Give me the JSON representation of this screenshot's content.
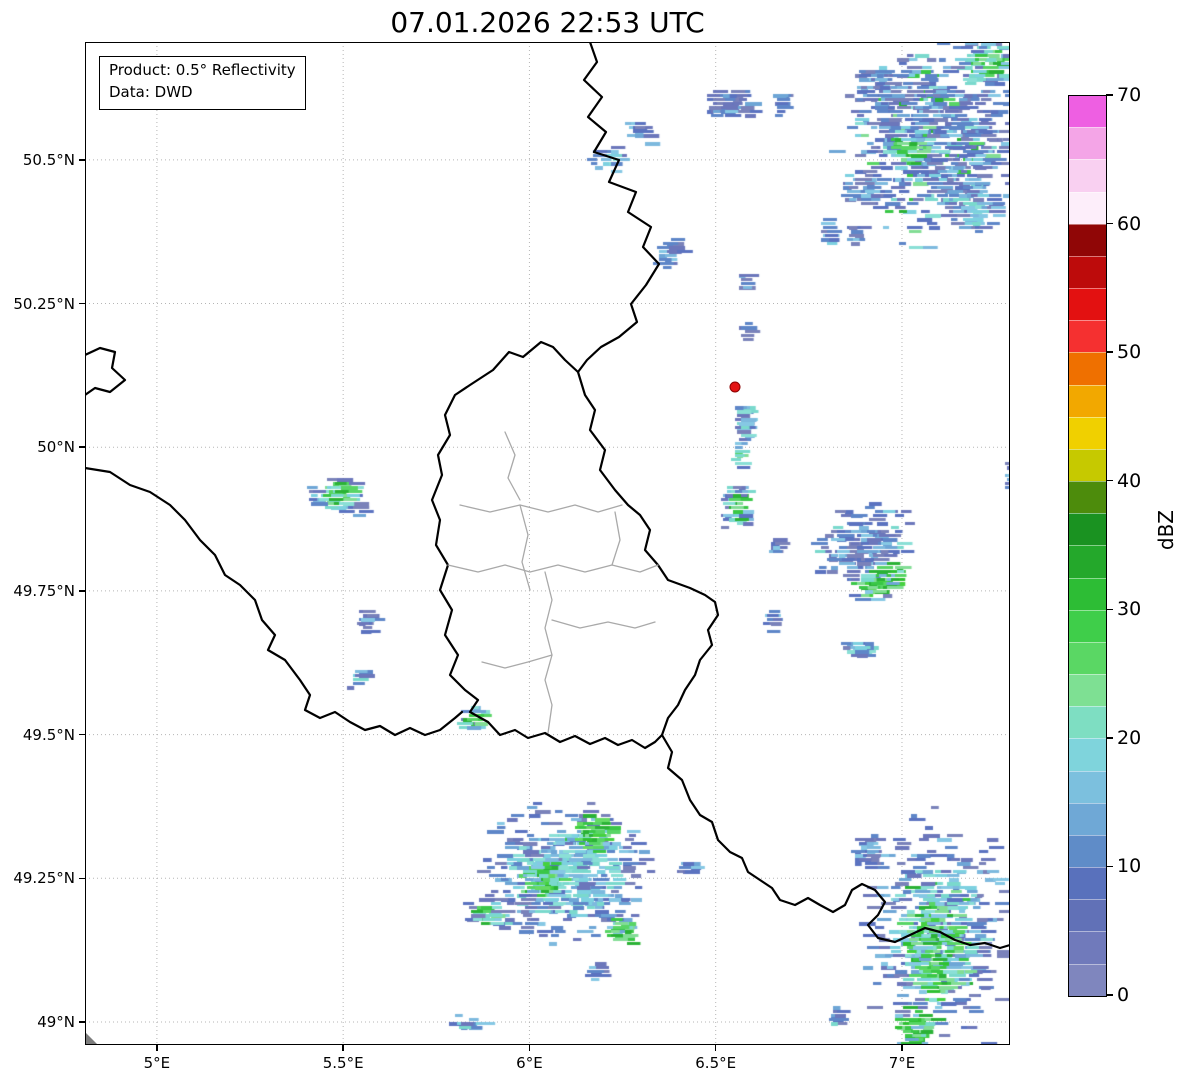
{
  "chart_data": {
    "type": "heatmap",
    "subtype": "weather-radar-reflectivity-map",
    "title": "07.01.2026 22:53 UTC",
    "annotation": {
      "line1": "Product: 0.5° Reflectivity",
      "line2": "Data: DWD"
    },
    "xlim": [
      4.807,
      7.29
    ],
    "ylim": [
      48.96,
      50.705
    ],
    "grid": "dotted",
    "lon_ticks": [
      {
        "value": 5.0,
        "label": "5°E"
      },
      {
        "value": 5.5,
        "label": "5.5°E"
      },
      {
        "value": 6.0,
        "label": "6°E"
      },
      {
        "value": 6.5,
        "label": "6.5°E"
      },
      {
        "value": 7.0,
        "label": "7°E"
      }
    ],
    "lat_ticks": [
      {
        "value": 50.5,
        "label": "50.5°N"
      },
      {
        "value": 50.25,
        "label": "50.25°N"
      },
      {
        "value": 50.0,
        "label": "50°N"
      },
      {
        "value": 49.75,
        "label": "49.75°N"
      },
      {
        "value": 49.5,
        "label": "49.5°N"
      },
      {
        "value": 49.25,
        "label": "49.25°N"
      },
      {
        "value": 49.0,
        "label": "49°N"
      }
    ],
    "colorbar": {
      "label": "dBZ",
      "min": 0,
      "max": 70,
      "tick_values": [
        0,
        10,
        20,
        30,
        40,
        50,
        60,
        70
      ],
      "segment_step": 2.5,
      "segment_colors": [
        "#7f86be",
        "#707abb",
        "#6171b7",
        "#5971bc",
        "#5f8cc8",
        "#6fa8d6",
        "#7cc0de",
        "#7fd4dc",
        "#7edec2",
        "#7ee093",
        "#5ad764",
        "#3fce4a",
        "#2dbd35",
        "#24a82b",
        "#1a9221",
        "#4d8c0c",
        "#c6c900",
        "#f0d000",
        "#f2a800",
        "#ef7000",
        "#f53030",
        "#e31111",
        "#bd0b0b",
        "#900606",
        "#fdeefa",
        "#f9d0f1",
        "#f4a5e7",
        "#ee5fe2"
      ]
    },
    "radar_site_marker": {
      "lon": 6.552,
      "lat": 50.105,
      "color": "#e31414"
    },
    "echo_palette": {
      "blues": [
        "#7a82ba",
        "#6c77bb",
        "#5b73c0",
        "#5e86c8"
      ],
      "lightblues": [
        "#6ea6d6",
        "#7db9de",
        "#86c8e4"
      ],
      "cyans": [
        "#7dd1e0",
        "#7ad9cd",
        "#8adfd6"
      ],
      "greens": [
        "#82dd95",
        "#58d565",
        "#3ac747",
        "#2bb236"
      ],
      "brightgreens": [
        "#45d13f",
        "#2fc132",
        "#65da63"
      ]
    },
    "echo_clusters": [
      {
        "lon": 7.1,
        "lat": 50.54,
        "rx": 0.3,
        "ry": 0.2,
        "n": 650,
        "style": "mixed",
        "angle": -35
      },
      {
        "lon": 7.22,
        "lat": 50.67,
        "rx": 0.1,
        "ry": 0.05,
        "n": 90,
        "style": "green-core",
        "angle": -30
      },
      {
        "lon": 6.93,
        "lat": 50.62,
        "rx": 0.1,
        "ry": 0.07,
        "n": 90,
        "style": "blue",
        "angle": -35
      },
      {
        "lon": 6.88,
        "lat": 50.45,
        "rx": 0.06,
        "ry": 0.05,
        "n": 45,
        "style": "blue",
        "angle": -35
      },
      {
        "lon": 7.18,
        "lat": 50.42,
        "rx": 0.1,
        "ry": 0.06,
        "n": 80,
        "style": "blue-cyan",
        "angle": -30
      },
      {
        "lon": 7.0,
        "lat": 50.52,
        "rx": 0.08,
        "ry": 0.06,
        "n": 80,
        "style": "green-core",
        "angle": -35
      },
      {
        "lon": 6.87,
        "lat": 50.37,
        "rx": 0.03,
        "ry": 0.03,
        "n": 12,
        "style": "blue",
        "angle": 0
      },
      {
        "lon": 6.53,
        "lat": 50.6,
        "rx": 0.08,
        "ry": 0.035,
        "n": 60,
        "style": "blue",
        "angle": 0
      },
      {
        "lon": 6.66,
        "lat": 50.6,
        "rx": 0.02,
        "ry": 0.035,
        "n": 14,
        "style": "blue",
        "angle": 0
      },
      {
        "lon": 6.28,
        "lat": 50.55,
        "rx": 0.04,
        "ry": 0.025,
        "n": 18,
        "style": "blue-cyan",
        "angle": 0
      },
      {
        "lon": 6.2,
        "lat": 50.5,
        "rx": 0.055,
        "ry": 0.03,
        "n": 25,
        "style": "blue-cyan",
        "angle": 0
      },
      {
        "lon": 6.36,
        "lat": 50.34,
        "rx": 0.05,
        "ry": 0.035,
        "n": 25,
        "style": "blue",
        "angle": 0
      },
      {
        "lon": 6.79,
        "lat": 50.38,
        "rx": 0.015,
        "ry": 0.03,
        "n": 10,
        "style": "blue",
        "angle": 0
      },
      {
        "lon": 6.57,
        "lat": 50.29,
        "rx": 0.02,
        "ry": 0.025,
        "n": 9,
        "style": "blue",
        "angle": 0
      },
      {
        "lon": 6.57,
        "lat": 50.21,
        "rx": 0.015,
        "ry": 0.025,
        "n": 8,
        "style": "blue",
        "angle": 0
      },
      {
        "lon": 6.565,
        "lat": 50.05,
        "rx": 0.022,
        "ry": 0.06,
        "n": 40,
        "style": "blue-cyan",
        "angle": 0
      },
      {
        "lon": 6.55,
        "lat": 49.985,
        "rx": 0.018,
        "ry": 0.025,
        "n": 14,
        "style": "green-core",
        "angle": 0
      },
      {
        "lon": 6.545,
        "lat": 49.9,
        "rx": 0.04,
        "ry": 0.055,
        "n": 55,
        "style": "green-core",
        "angle": 0
      },
      {
        "lon": 6.65,
        "lat": 49.83,
        "rx": 0.02,
        "ry": 0.02,
        "n": 10,
        "style": "blue",
        "angle": 0
      },
      {
        "lon": 6.88,
        "lat": 49.83,
        "rx": 0.16,
        "ry": 0.08,
        "n": 170,
        "style": "blue",
        "angle": -30
      },
      {
        "lon": 6.93,
        "lat": 49.77,
        "rx": 0.1,
        "ry": 0.035,
        "n": 90,
        "style": "green-heavy",
        "angle": -20
      },
      {
        "lon": 6.64,
        "lat": 49.7,
        "rx": 0.02,
        "ry": 0.02,
        "n": 10,
        "style": "blue",
        "angle": 0
      },
      {
        "lon": 6.87,
        "lat": 49.655,
        "rx": 0.07,
        "ry": 0.022,
        "n": 30,
        "style": "blue-cyan",
        "angle": -15
      },
      {
        "lon": 7.28,
        "lat": 49.96,
        "rx": 0.012,
        "ry": 0.035,
        "n": 9,
        "style": "blue",
        "angle": 0
      },
      {
        "lon": 5.47,
        "lat": 49.92,
        "rx": 0.095,
        "ry": 0.05,
        "n": 85,
        "style": "green-core",
        "angle": 0
      },
      {
        "lon": 5.55,
        "lat": 49.7,
        "rx": 0.025,
        "ry": 0.03,
        "n": 18,
        "style": "blue",
        "angle": 0
      },
      {
        "lon": 5.53,
        "lat": 49.6,
        "rx": 0.022,
        "ry": 0.032,
        "n": 16,
        "style": "blue-cyan",
        "angle": 0
      },
      {
        "lon": 5.84,
        "lat": 49.53,
        "rx": 0.045,
        "ry": 0.03,
        "n": 30,
        "style": "green-core",
        "angle": 0
      },
      {
        "lon": 6.08,
        "lat": 49.26,
        "rx": 0.28,
        "ry": 0.14,
        "n": 480,
        "style": "blue-cyan",
        "angle": 0
      },
      {
        "lon": 6.16,
        "lat": 49.33,
        "rx": 0.07,
        "ry": 0.045,
        "n": 80,
        "style": "green-heavy",
        "angle": 0
      },
      {
        "lon": 6.02,
        "lat": 49.25,
        "rx": 0.07,
        "ry": 0.045,
        "n": 80,
        "style": "green-heavy",
        "angle": 0
      },
      {
        "lon": 5.87,
        "lat": 49.19,
        "rx": 0.06,
        "ry": 0.035,
        "n": 50,
        "style": "green-core",
        "angle": 0
      },
      {
        "lon": 6.23,
        "lat": 49.16,
        "rx": 0.05,
        "ry": 0.03,
        "n": 40,
        "style": "green-heavy",
        "angle": 0
      },
      {
        "lon": 6.42,
        "lat": 49.27,
        "rx": 0.035,
        "ry": 0.022,
        "n": 15,
        "style": "blue",
        "angle": 0
      },
      {
        "lon": 6.17,
        "lat": 49.09,
        "rx": 0.03,
        "ry": 0.025,
        "n": 14,
        "style": "blue",
        "angle": 0
      },
      {
        "lon": 5.82,
        "lat": 49.0,
        "rx": 0.055,
        "ry": 0.018,
        "n": 20,
        "style": "blue-cyan",
        "angle": 0
      },
      {
        "lon": 7.08,
        "lat": 49.165,
        "rx": 0.24,
        "ry": 0.22,
        "n": 420,
        "style": "blue-cyan",
        "angle": 0
      },
      {
        "lon": 7.08,
        "lat": 49.13,
        "rx": 0.12,
        "ry": 0.13,
        "n": 220,
        "style": "green-heavy",
        "angle": 0
      },
      {
        "lon": 7.02,
        "lat": 48.99,
        "rx": 0.07,
        "ry": 0.05,
        "n": 60,
        "style": "green-heavy",
        "angle": 0
      },
      {
        "lon": 6.81,
        "lat": 49.015,
        "rx": 0.022,
        "ry": 0.028,
        "n": 12,
        "style": "blue",
        "angle": 0
      },
      {
        "lon": 6.9,
        "lat": 49.3,
        "rx": 0.05,
        "ry": 0.04,
        "n": 35,
        "style": "blue",
        "angle": 0
      }
    ]
  }
}
